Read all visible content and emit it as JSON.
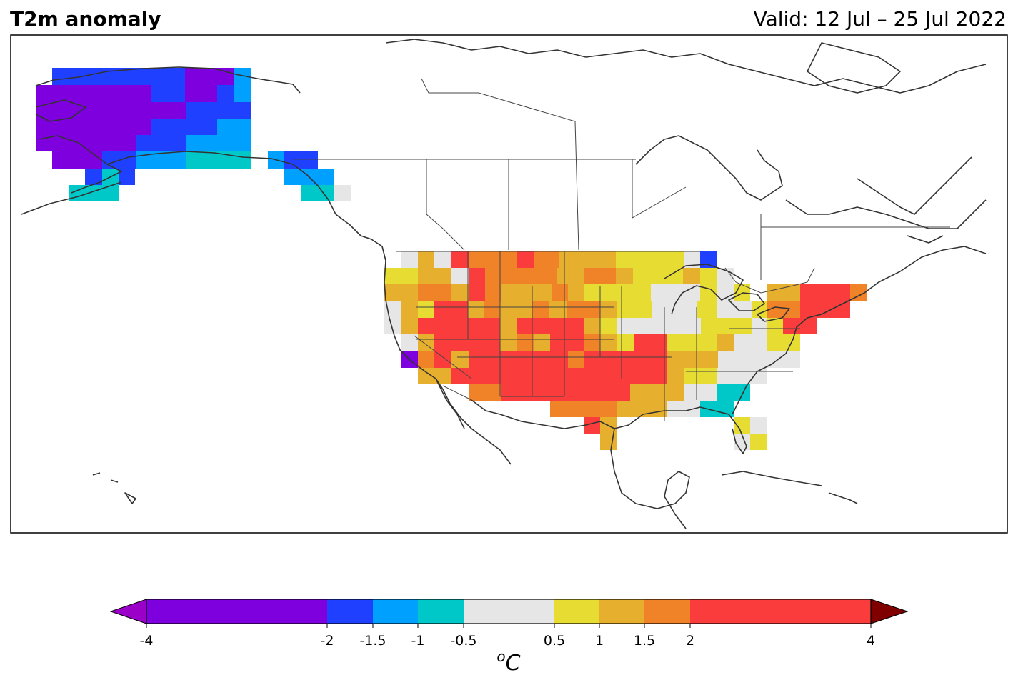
{
  "header": {
    "title": "T2m anomaly",
    "valid": "Valid: 12 Jul – 25 Jul 2022"
  },
  "colorbar": {
    "bins": [
      {
        "from": -4,
        "to": -2,
        "color": "#7f00df"
      },
      {
        "from": -2,
        "to": -1.5,
        "color": "#2040ff"
      },
      {
        "from": -1.5,
        "to": -1,
        "color": "#00a0ff"
      },
      {
        "from": -1,
        "to": -0.5,
        "color": "#00c8c8"
      },
      {
        "from": -0.5,
        "to": 0.5,
        "color": "#e6e6e6"
      },
      {
        "from": 0.5,
        "to": 1,
        "color": "#e6dc32"
      },
      {
        "from": 1,
        "to": 1.5,
        "color": "#e6af2d"
      },
      {
        "from": 1.5,
        "to": 2,
        "color": "#f08228"
      },
      {
        "from": 2,
        "to": 4,
        "color": "#fa3c3c"
      }
    ],
    "under_color": "#9a00c8",
    "over_color": "#800000",
    "ticks": [
      "-4",
      "-2",
      "-1.5",
      "-1",
      "-0.5",
      "0.5",
      "1",
      "1.5",
      "2",
      "4"
    ],
    "unit_prefix": "o",
    "unit": "C"
  },
  "map": {
    "region": "North America",
    "colors": {
      "coast": "#333333",
      "border": "#444444",
      "frame": "#000000"
    }
  }
}
